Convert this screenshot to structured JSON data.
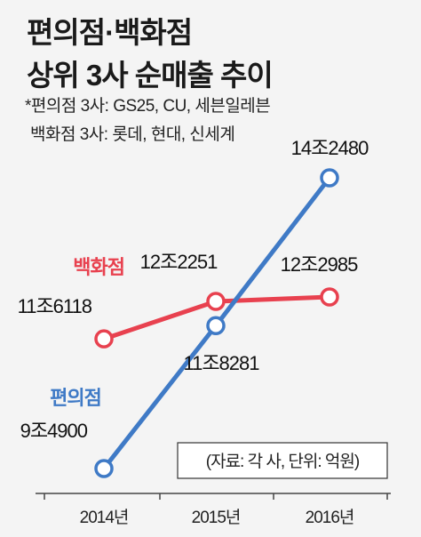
{
  "title": {
    "line1": "편의점·백화점",
    "line2": "상위 3사 순매출 추이"
  },
  "notes": {
    "line1": "*편의점 3사: GS25, CU, 세븐일레븐",
    "line2": "백화점 3사: 롯데, 현대, 신세계"
  },
  "source_box": "(자료: 각 사, 단위: 억원)",
  "chart_data": {
    "type": "line",
    "x": [
      "2014년",
      "2015년",
      "2016년"
    ],
    "unit": "억원",
    "series": [
      {
        "name": "백화점",
        "values": [
          116118,
          122251,
          122985
        ],
        "labels": [
          "11조6118",
          "12조2251",
          "12조2985"
        ],
        "color": "#e8414f"
      },
      {
        "name": "편의점",
        "values": [
          94900,
          118281,
          142480
        ],
        "labels": [
          "9조4900",
          "11조8281",
          "14조2480"
        ],
        "color": "#3f7ac6"
      }
    ],
    "grid": false,
    "legend": "inline"
  }
}
